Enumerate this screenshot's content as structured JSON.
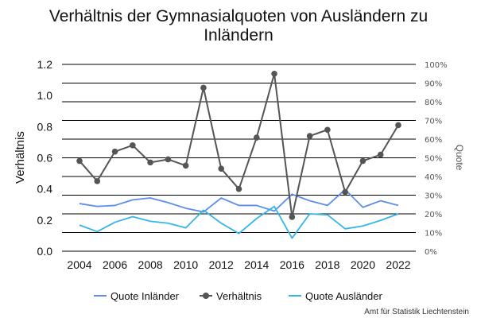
{
  "chart_data": {
    "type": "line",
    "title_lines": [
      "Verhältnis der Gymnasialquoten von Ausländern zu",
      "Inländern"
    ],
    "ylabel": "Verhältnis",
    "y2label": "Quote",
    "ylim": [
      0,
      1.2
    ],
    "y_ticks": [
      "0.0",
      "0.2",
      "0.4",
      "0.6",
      "0.8",
      "1.0",
      "1.2"
    ],
    "y2lim": [
      0,
      100
    ],
    "y2_ticks": [
      "0%",
      "10%",
      "20%",
      "30%",
      "40%",
      "50%",
      "60%",
      "70%",
      "80%",
      "90%",
      "100%"
    ],
    "x": [
      2004,
      2005,
      2006,
      2007,
      2008,
      2009,
      2010,
      2011,
      2012,
      2013,
      2014,
      2015,
      2016,
      2017,
      2018,
      2019,
      2020,
      2021,
      2022
    ],
    "x_ticks": [
      "2004",
      "2006",
      "2008",
      "2010",
      "2012",
      "2014",
      "2016",
      "2018",
      "2020",
      "2022"
    ],
    "grid": "horizontal",
    "legend_position": "bottom",
    "series": [
      {
        "name": "Quote Inländer",
        "axis": "right",
        "color": "#5b8def",
        "marker": false,
        "values": [
          25.5,
          24,
          24.5,
          27.5,
          28.5,
          26,
          23,
          21,
          28.5,
          24.5,
          24.5,
          21.5,
          30.5,
          27,
          24.5,
          33,
          23.5,
          27,
          24.5
        ]
      },
      {
        "name": "Verhältnis",
        "axis": "left",
        "color": "#555555",
        "marker": true,
        "values": [
          0.58,
          0.45,
          0.64,
          0.68,
          0.57,
          0.59,
          0.55,
          1.05,
          0.53,
          0.4,
          0.73,
          1.14,
          0.22,
          0.74,
          0.78,
          0.38,
          0.58,
          0.62,
          0.81
        ]
      },
      {
        "name": "Quote Ausländer",
        "axis": "right",
        "color": "#35b6e8",
        "marker": false,
        "values": [
          14,
          10.5,
          15.5,
          18.5,
          16,
          15,
          12.5,
          22,
          15,
          9.5,
          17.5,
          24,
          7,
          20,
          19.5,
          12,
          13.5,
          16.5,
          20
        ]
      }
    ]
  },
  "credit": "Amt für Statistik Liechtenstein"
}
